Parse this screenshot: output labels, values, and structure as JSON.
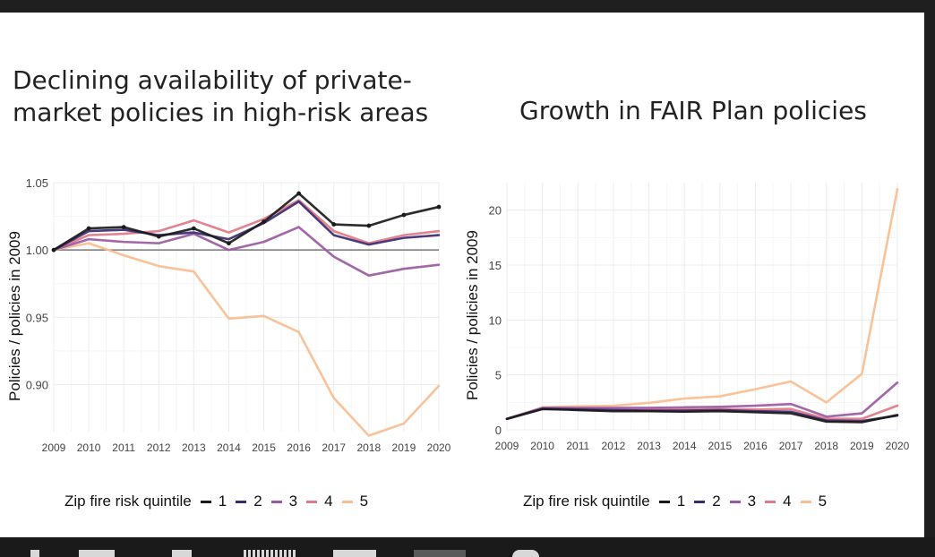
{
  "colors": {
    "q1": "#1a1a1a",
    "q2": "#3b2a72",
    "q3": "#9a59a2",
    "q4": "#e07886",
    "q5": "#f9bd90",
    "grid": "#ececec",
    "reference_line": "#777777",
    "tick_text": "#444444"
  },
  "chart_data": [
    {
      "type": "line",
      "title": "Declining availability of private-\nmarket policies in high-risk areas",
      "xlabel": "",
      "ylabel": "Policies / policies in 2009",
      "x": [
        2009,
        2010,
        2011,
        2012,
        2013,
        2014,
        2015,
        2016,
        2017,
        2018,
        2019,
        2020
      ],
      "ylim": [
        0.865,
        1.05
      ],
      "yticks": [
        0.9,
        0.95,
        1.0,
        1.05
      ],
      "ytick_labels": [
        "0.90",
        "0.95",
        "1.00",
        "1.05"
      ],
      "reference_y": 1.0,
      "grid": true,
      "legend": {
        "title": "Zip fire risk quintile",
        "position": "bottom"
      },
      "series": [
        {
          "name": "1",
          "color_key": "q1",
          "markers": true,
          "values": [
            1.0,
            1.016,
            1.017,
            1.01,
            1.016,
            1.005,
            1.021,
            1.042,
            1.019,
            1.018,
            1.026,
            1.032
          ]
        },
        {
          "name": "2",
          "color_key": "q2",
          "markers": false,
          "values": [
            1.0,
            1.014,
            1.015,
            1.011,
            1.013,
            1.008,
            1.02,
            1.036,
            1.011,
            1.004,
            1.009,
            1.011
          ]
        },
        {
          "name": "3",
          "color_key": "q3",
          "markers": false,
          "values": [
            1.0,
            1.008,
            1.006,
            1.005,
            1.012,
            1.0,
            1.006,
            1.017,
            0.995,
            0.981,
            0.986,
            0.989
          ]
        },
        {
          "name": "4",
          "color_key": "q4",
          "markers": false,
          "values": [
            1.0,
            1.011,
            1.012,
            1.014,
            1.022,
            1.013,
            1.023,
            1.037,
            1.014,
            1.005,
            1.011,
            1.014
          ]
        },
        {
          "name": "5",
          "color_key": "q5",
          "markers": false,
          "values": [
            1.0,
            1.005,
            0.996,
            0.988,
            0.984,
            0.949,
            0.951,
            0.939,
            0.89,
            0.862,
            0.871,
            0.899
          ]
        }
      ]
    },
    {
      "type": "line",
      "title": "Growth in FAIR Plan policies",
      "xlabel": "",
      "ylabel": "Policies / policies in 2009",
      "x": [
        2009,
        2010,
        2011,
        2012,
        2013,
        2014,
        2015,
        2016,
        2017,
        2018,
        2019,
        2020
      ],
      "ylim": [
        0,
        22.5
      ],
      "yticks": [
        0,
        5,
        10,
        15,
        20
      ],
      "ytick_labels": [
        "0",
        "5",
        "10",
        "15",
        "20"
      ],
      "grid": true,
      "legend": {
        "title": "Zip fire risk quintile",
        "position": "bottom"
      },
      "series": [
        {
          "name": "1",
          "color_key": "q1",
          "markers": false,
          "values": [
            1.0,
            1.9,
            1.8,
            1.7,
            1.7,
            1.65,
            1.7,
            1.6,
            1.5,
            0.75,
            0.7,
            1.35
          ]
        },
        {
          "name": "2",
          "color_key": "q2",
          "markers": false,
          "values": [
            1.0,
            1.9,
            1.85,
            1.8,
            1.75,
            1.75,
            1.8,
            1.7,
            1.65,
            0.85,
            0.8,
            1.3
          ]
        },
        {
          "name": "3",
          "color_key": "q3",
          "markers": false,
          "values": [
            1.0,
            2.0,
            2.0,
            2.0,
            2.0,
            2.05,
            2.1,
            2.2,
            2.35,
            1.2,
            1.5,
            4.3
          ]
        },
        {
          "name": "4",
          "color_key": "q4",
          "markers": false,
          "values": [
            1.0,
            1.95,
            1.9,
            1.85,
            1.85,
            1.85,
            1.9,
            1.85,
            1.9,
            1.0,
            1.0,
            2.2
          ]
        },
        {
          "name": "5",
          "color_key": "q5",
          "markers": false,
          "values": [
            1.0,
            2.05,
            2.15,
            2.2,
            2.45,
            2.85,
            3.05,
            3.7,
            4.4,
            2.5,
            5.1,
            21.9
          ]
        }
      ]
    }
  ]
}
